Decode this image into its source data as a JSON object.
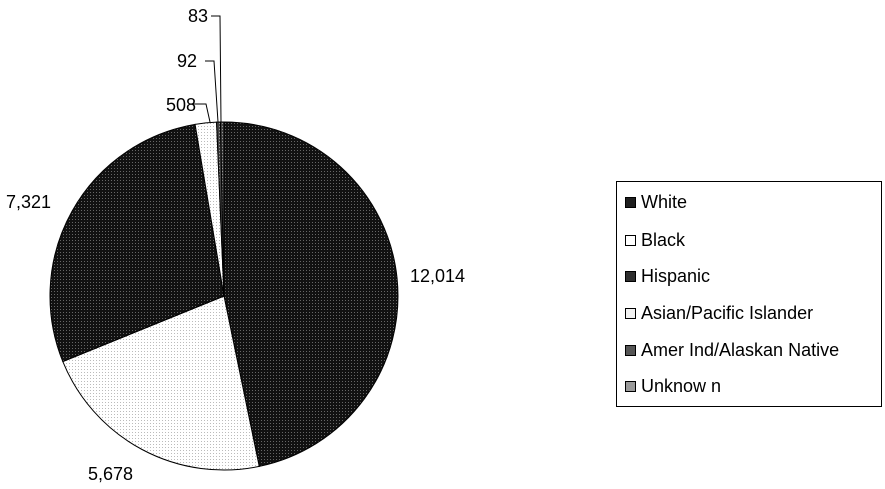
{
  "chart_data": {
    "type": "pie",
    "title": "",
    "slices": [
      {
        "label": "White",
        "value": 12014,
        "value_label": "12,014",
        "color": "#1e1e1e",
        "pattern": "dots-dark"
      },
      {
        "label": "Black",
        "value": 5678,
        "value_label": "5,678",
        "color": "#ffffff",
        "pattern": "dots-light"
      },
      {
        "label": "Hispanic",
        "value": 7321,
        "value_label": "7,321",
        "color": "#2e2e2e",
        "pattern": "dots-dark"
      },
      {
        "label": "Asian/Pacific Islander",
        "value": 508,
        "value_label": "508",
        "color": "#f2f2f2",
        "pattern": "dots-light"
      },
      {
        "label": "Amer Ind/Alaskan Native",
        "value": 92,
        "value_label": "92",
        "color": "#555555",
        "pattern": "dots-mid"
      },
      {
        "label": "Unknow n",
        "value": 83,
        "value_label": "83",
        "color": "#9a9a9a",
        "pattern": "dots-mid"
      }
    ],
    "legend_position": "right",
    "start": "12 o'clock",
    "direction": "clockwise"
  }
}
